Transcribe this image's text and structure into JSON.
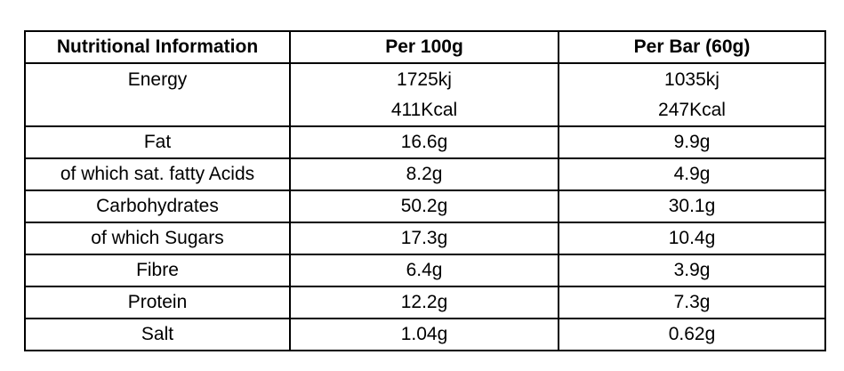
{
  "page": {
    "background_color": "#ffffff",
    "border_color": "#000000",
    "text_color": "#000000"
  },
  "table": {
    "columns": {
      "label": "Nutritional Information",
      "per100g": "Per 100g",
      "perBar": "Per Bar (60g)"
    },
    "rows": [
      {
        "label": "Energy",
        "per100g": "1725kj\n411Kcal",
        "perBar": "1035kj\n247Kcal"
      },
      {
        "label": "Fat",
        "per100g": "16.6g",
        "perBar": "9.9g"
      },
      {
        "label": "of which sat. fatty Acids",
        "per100g": "8.2g",
        "perBar": "4.9g"
      },
      {
        "label": "Carbohydrates",
        "per100g": "50.2g",
        "perBar": "30.1g"
      },
      {
        "label": "of which Sugars",
        "per100g": "17.3g",
        "perBar": "10.4g"
      },
      {
        "label": "Fibre",
        "per100g": "6.4g",
        "perBar": "3.9g"
      },
      {
        "label": "Protein",
        "per100g": "12.2g",
        "perBar": "7.3g"
      },
      {
        "label": "Salt",
        "per100g": "1.04g",
        "perBar": "0.62g"
      }
    ]
  }
}
